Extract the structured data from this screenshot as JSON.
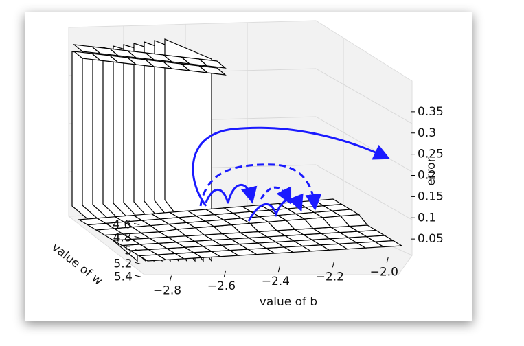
{
  "chart_data": {
    "type": "surface3d",
    "x_label": "value of b",
    "y_label": "value of w",
    "z_label": "error",
    "xlim": [
      -2.9,
      -1.95
    ],
    "xticks": [
      {
        "value": -2.8,
        "label": "−2.8"
      },
      {
        "value": -2.6,
        "label": "−2.6"
      },
      {
        "value": -2.4,
        "label": "−2.4"
      },
      {
        "value": -2.2,
        "label": "−2.2"
      },
      {
        "value": -2.0,
        "label": "−2.0"
      }
    ],
    "ylim": [
      4.5,
      5.45
    ],
    "yticks": [
      4.6,
      4.8,
      5.0,
      5.2,
      5.4
    ],
    "zlim": [
      0,
      0.4
    ],
    "zticks": [
      0.05,
      0.1,
      0.15,
      0.2,
      0.25,
      0.3,
      0.35
    ]
  }
}
